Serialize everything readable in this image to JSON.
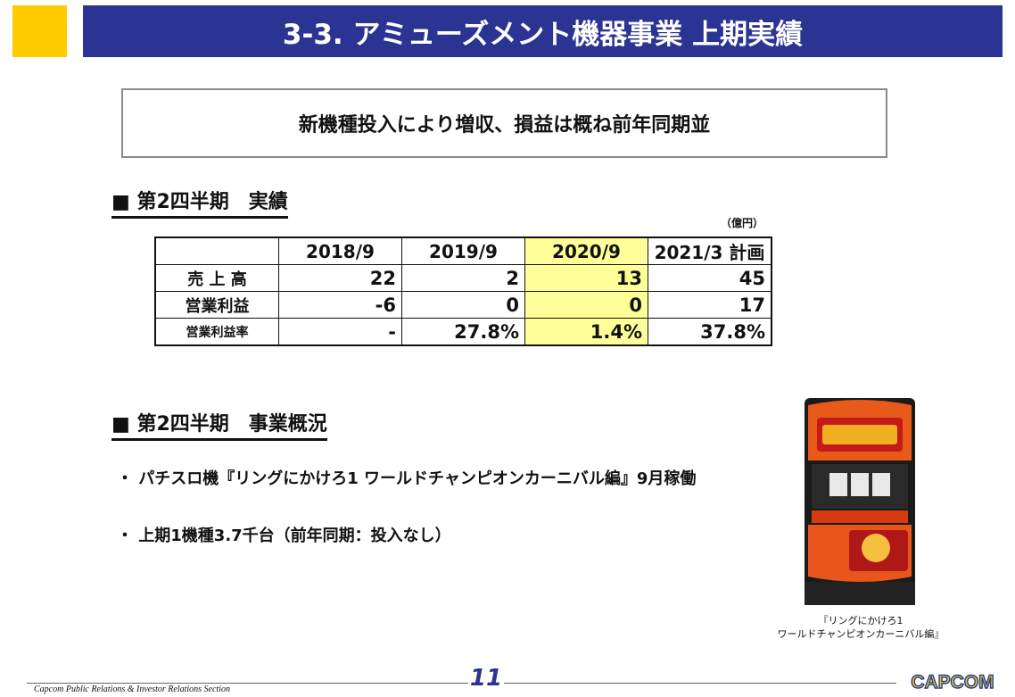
{
  "header": {
    "title": "3-3. アミューズメント機器事業 上期実績"
  },
  "summary": "新機種投入により増収、損益は概ね前年同期並",
  "results": {
    "heading": "■ 第2四半期　実績",
    "unit": "（億円）",
    "columns": [
      "",
      "2018/9",
      "2019/9",
      "2020/9",
      "2021/3 計画"
    ],
    "rows": [
      {
        "label": "売 上 高",
        "values": [
          "22",
          "2",
          "13",
          "45"
        ]
      },
      {
        "label": "営業利益",
        "values": [
          "-6",
          "0",
          "0",
          "17"
        ]
      },
      {
        "label": "営業利益率",
        "values": [
          "-",
          "27.8%",
          "1.4%",
          "37.8%"
        ]
      }
    ],
    "highlight_color": "#ffff99"
  },
  "overview": {
    "heading": "■ 第2四半期　事業概況",
    "bullets": [
      "・ パチスロ機『リングにかけろ1 ワールドチャンピオンカーニバル編』9月稼働",
      "・ 上期1機種3.7千台（前年同期：投入なし）"
    ]
  },
  "image": {
    "caption_line1": "『リングにかけろ1",
    "caption_line2": "ワールドチャンピオンカーニバル編』"
  },
  "footer": {
    "text": "Capcom Public Relations & Investor Relations Section",
    "page_number": "11",
    "logo": "CAPCOM"
  },
  "colors": {
    "accent": "#2b3393",
    "yellow": "#ffcc00"
  }
}
